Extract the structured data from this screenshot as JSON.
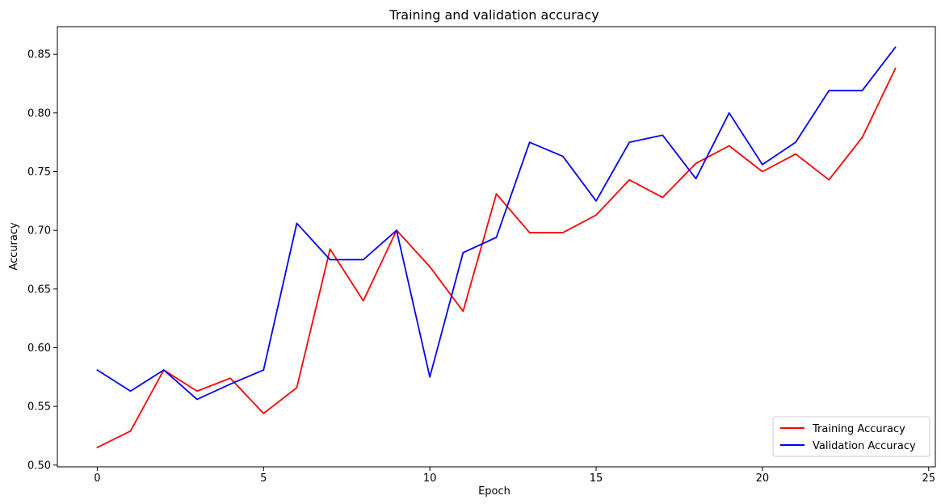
{
  "chart_data": {
    "type": "line",
    "title": "Training and validation accuracy",
    "xlabel": "Epoch",
    "ylabel": "Accuracy",
    "xlim": [
      -1.2,
      25.2
    ],
    "ylim": [
      0.4985,
      0.8735
    ],
    "xticks": [
      0,
      5,
      10,
      15,
      20,
      25
    ],
    "xtick_labels": [
      "0",
      "5",
      "10",
      "15",
      "20",
      "25"
    ],
    "yticks": [
      0.5,
      0.55,
      0.6,
      0.65,
      0.7,
      0.75,
      0.8,
      0.85
    ],
    "ytick_labels": [
      "0.50",
      "0.55",
      "0.60",
      "0.65",
      "0.70",
      "0.75",
      "0.80",
      "0.85"
    ],
    "grid": false,
    "legend_position": "lower-right",
    "x": [
      0,
      1,
      2,
      3,
      4,
      5,
      6,
      7,
      8,
      9,
      10,
      11,
      12,
      13,
      14,
      15,
      16,
      17,
      18,
      19,
      20,
      21,
      22,
      23,
      24
    ],
    "series": [
      {
        "name": "Training Accuracy",
        "color": "#ff0000",
        "values": [
          0.515,
          0.529,
          0.581,
          0.563,
          0.574,
          0.544,
          0.566,
          0.684,
          0.64,
          0.7,
          0.669,
          0.631,
          0.731,
          0.698,
          0.698,
          0.713,
          0.743,
          0.728,
          0.757,
          0.772,
          0.75,
          0.765,
          0.743,
          0.779,
          0.838
        ]
      },
      {
        "name": "Validation Accuracy",
        "color": "#0000ff",
        "values": [
          0.581,
          0.563,
          0.581,
          0.556,
          0.569,
          0.581,
          0.706,
          0.675,
          0.675,
          0.7,
          0.575,
          0.681,
          0.694,
          0.775,
          0.763,
          0.725,
          0.775,
          0.781,
          0.744,
          0.8,
          0.756,
          0.775,
          0.819,
          0.819,
          0.856
        ]
      }
    ]
  }
}
